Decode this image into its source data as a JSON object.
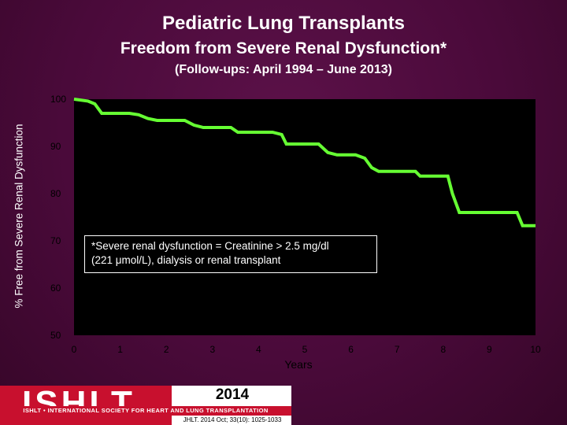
{
  "titles": {
    "main": "Pediatric Lung Transplants",
    "sub": "Freedom from Severe Renal Dysfunction*",
    "followup": "(Follow-ups: April 1994 – June 2013)"
  },
  "footnote": {
    "line1": "*Severe renal dysfunction = Creatinine > 2.5 mg/dl",
    "line2": "(221 μmol/L), dialysis or renal transplant"
  },
  "logo": {
    "name": "ISHLT",
    "society": "ISHLT • INTERNATIONAL SOCIETY FOR HEART AND LUNG TRANSPLANTATION",
    "year": "2014",
    "citation": "JHLT. 2014 Oct; 33(10): 1025-1033"
  },
  "colors": {
    "background": "#4a0a3a",
    "plot_area": "#000000",
    "curve": "#66ff33",
    "logo_red": "#c8102e"
  },
  "chart_data": {
    "type": "line",
    "title": "Freedom from Severe Renal Dysfunction*",
    "xlabel": "Years",
    "ylabel": "% Free from Severe Renal Dysfunction",
    "xlim": [
      0,
      10
    ],
    "ylim": [
      50,
      100
    ],
    "x_ticks": [
      "0",
      "1",
      "2",
      "3",
      "4",
      "5",
      "6",
      "7",
      "8",
      "9",
      "10"
    ],
    "y_ticks": [
      "50",
      "60",
      "70",
      "80",
      "90",
      "100"
    ],
    "grid": false,
    "legend": "none",
    "series": [
      {
        "step": true,
        "points": [
          [
            0,
            100
          ],
          [
            0.3,
            99.6
          ],
          [
            0.45,
            99.0
          ],
          [
            0.6,
            97.0
          ],
          [
            1.2,
            97.0
          ],
          [
            1.4,
            96.7
          ],
          [
            1.6,
            95.9
          ],
          [
            1.8,
            95.5
          ],
          [
            2.4,
            95.5
          ],
          [
            2.6,
            94.5
          ],
          [
            2.8,
            94.0
          ],
          [
            3.4,
            94.0
          ],
          [
            3.55,
            93.0
          ],
          [
            4.3,
            93.0
          ],
          [
            4.5,
            92.5
          ],
          [
            4.6,
            90.5
          ],
          [
            5.3,
            90.5
          ],
          [
            5.5,
            88.7
          ],
          [
            5.7,
            88.2
          ],
          [
            6.1,
            88.2
          ],
          [
            6.3,
            87.5
          ],
          [
            6.45,
            85.5
          ],
          [
            6.6,
            84.7
          ],
          [
            7.4,
            84.7
          ],
          [
            7.5,
            83.7
          ],
          [
            8.1,
            83.7
          ],
          [
            8.2,
            80.0
          ],
          [
            8.35,
            76.0
          ],
          [
            9.6,
            76.0
          ],
          [
            9.72,
            73.2
          ],
          [
            10,
            73.2
          ]
        ]
      }
    ]
  }
}
